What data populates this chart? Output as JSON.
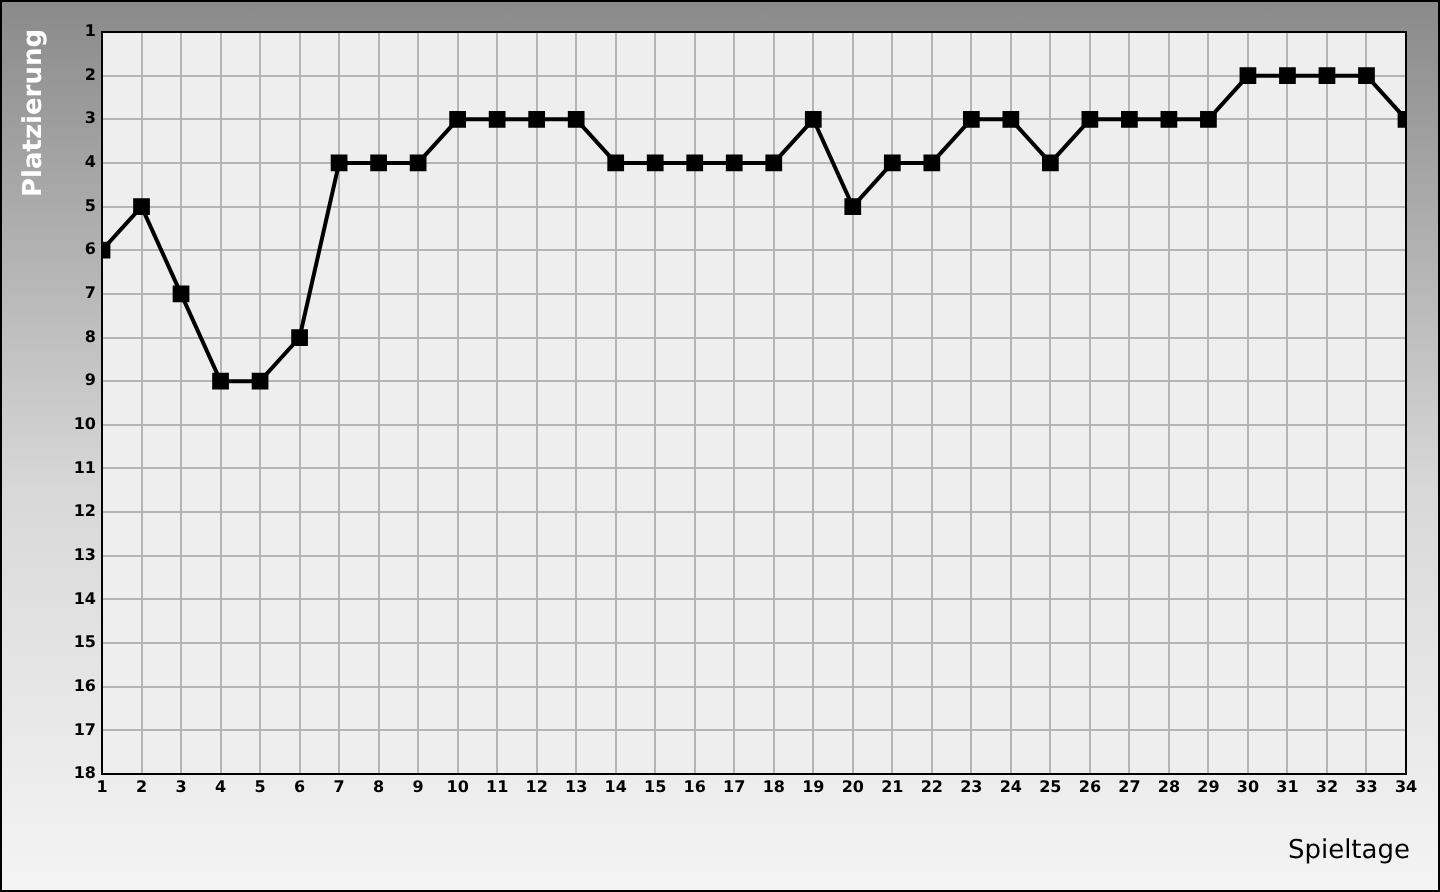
{
  "chart_data": {
    "type": "line",
    "xlabel": "Spieltage",
    "ylabel": "Platzierung",
    "x": [
      1,
      2,
      3,
      4,
      5,
      6,
      7,
      8,
      9,
      10,
      11,
      12,
      13,
      14,
      15,
      16,
      17,
      18,
      19,
      20,
      21,
      22,
      23,
      24,
      25,
      26,
      27,
      28,
      29,
      30,
      31,
      32,
      33,
      34
    ],
    "series": [
      {
        "color": "#000000",
        "values": [
          6,
          5,
          7,
          9,
          9,
          8,
          4,
          4,
          4,
          3,
          3,
          3,
          3,
          4,
          4,
          4,
          4,
          4,
          3,
          5,
          4,
          4,
          3,
          3,
          4,
          3,
          3,
          3,
          3,
          2,
          2,
          2,
          2,
          3
        ]
      }
    ],
    "xlim": [
      1,
      34
    ],
    "xticks": [
      1,
      2,
      3,
      4,
      5,
      6,
      7,
      8,
      9,
      10,
      11,
      12,
      13,
      14,
      15,
      16,
      17,
      18,
      19,
      20,
      21,
      22,
      23,
      24,
      25,
      26,
      27,
      28,
      29,
      30,
      31,
      32,
      33,
      34
    ],
    "ylim": [
      18,
      1
    ],
    "yticks": [
      1,
      2,
      3,
      4,
      5,
      6,
      7,
      8,
      9,
      10,
      11,
      12,
      13,
      14,
      15,
      16,
      17,
      18
    ],
    "grid": true,
    "legend": false,
    "marker": "square",
    "line_style": "solid"
  }
}
